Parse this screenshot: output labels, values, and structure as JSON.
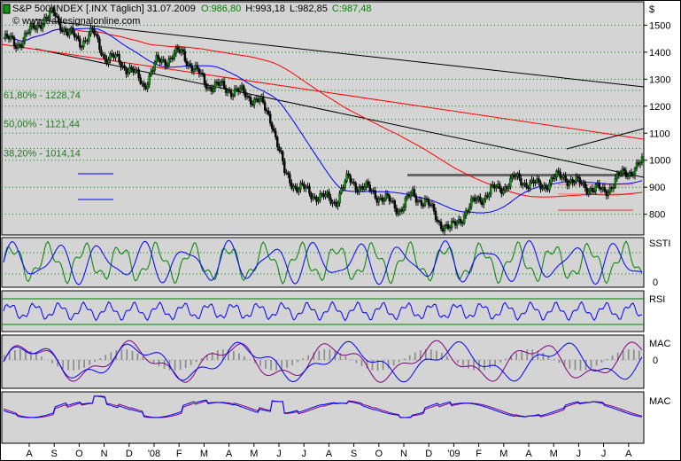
{
  "header": {
    "title": "S&P 500 INDEX [.INX  Täglich] 31.07.2009",
    "open": "O:986,80",
    "high": "H:993,18",
    "low": "L:982,85",
    "close": "C:987,48",
    "watermark": "© www.tradesignalonline.com",
    "currency": "$"
  },
  "fib_levels": [
    {
      "label": "61,80% - 1228,74",
      "value": 1228.74
    },
    {
      "label": "50,00% - 1121,44",
      "value": 1121.44
    },
    {
      "label": "38,20% - 1014,14",
      "value": 1014.14
    }
  ],
  "indicators": [
    {
      "name": "SSTI",
      "ref_label": "0"
    },
    {
      "name": "RSI",
      "ref_label": ""
    },
    {
      "name": "MAC",
      "ref_label": "0"
    },
    {
      "name": "MAC",
      "ref_label": ""
    }
  ],
  "x_ticks": [
    "A",
    "S",
    "O",
    "N",
    "D",
    "'08",
    "F",
    "M",
    "A",
    "M",
    "J",
    "J",
    "A",
    "S",
    "O",
    "N",
    "D",
    "'09",
    "F",
    "M",
    "A",
    "M",
    "J",
    "J",
    "A"
  ],
  "colors": {
    "panel_bg": "#d4d4d4",
    "price": "#000000",
    "ma_blue": "#0000ff",
    "ma_red": "#ff0000",
    "green": "#008000",
    "purple": "#800080"
  },
  "chart_data": {
    "type": "candlestick",
    "title": "S&P 500 INDEX [.INX  Täglich] 31.07.2009",
    "y_ticks": [
      1500,
      1400,
      1300,
      1200,
      1100,
      1000,
      900,
      800
    ],
    "ylim": [
      730,
      1580
    ],
    "horizontal_levels": [
      945,
      910,
      875,
      815
    ],
    "x_months": [
      "A",
      "S",
      "O",
      "N",
      "D",
      "'08",
      "F",
      "M",
      "A",
      "M",
      "J",
      "J",
      "A",
      "S",
      "O",
      "N",
      "D",
      "'09",
      "F",
      "M",
      "A",
      "M",
      "J",
      "J",
      "A"
    ],
    "close_path": [
      [
        0,
        1450
      ],
      [
        1,
        1430
      ],
      [
        2,
        1470
      ],
      [
        3,
        1520
      ],
      [
        4,
        1540
      ],
      [
        5,
        1470
      ],
      [
        6,
        1440
      ],
      [
        7,
        1470
      ],
      [
        8,
        1380
      ],
      [
        9,
        1370
      ],
      [
        10,
        1330
      ],
      [
        11,
        1280
      ],
      [
        12,
        1360
      ],
      [
        13,
        1380
      ],
      [
        14,
        1400
      ],
      [
        15,
        1330
      ],
      [
        16,
        1280
      ],
      [
        17,
        1270
      ],
      [
        18,
        1260
      ],
      [
        19,
        1240
      ],
      [
        20,
        1220
      ],
      [
        21,
        1150
      ],
      [
        22,
        950
      ],
      [
        23,
        900
      ],
      [
        24,
        880
      ],
      [
        25,
        860
      ],
      [
        26,
        850
      ],
      [
        27,
        930
      ],
      [
        28,
        900
      ],
      [
        29,
        880
      ],
      [
        30,
        850
      ],
      [
        31,
        820
      ],
      [
        32,
        870
      ],
      [
        33,
        850
      ],
      [
        34,
        780
      ],
      [
        35,
        740
      ],
      [
        36,
        800
      ],
      [
        37,
        850
      ],
      [
        38,
        880
      ],
      [
        39,
        900
      ],
      [
        40,
        930
      ],
      [
        41,
        920
      ],
      [
        42,
        900
      ],
      [
        43,
        930
      ],
      [
        44,
        940
      ],
      [
        45,
        910
      ],
      [
        46,
        900
      ],
      [
        47,
        880
      ],
      [
        48,
        930
      ],
      [
        49,
        960
      ],
      [
        50,
        987.48
      ]
    ]
  }
}
